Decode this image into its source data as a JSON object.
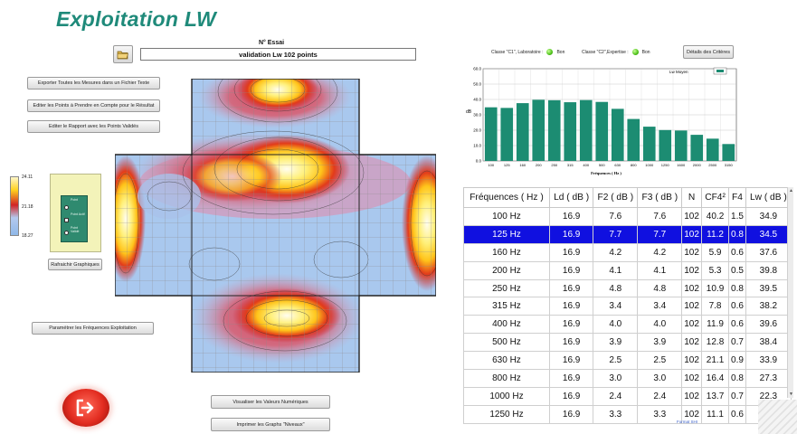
{
  "app": {
    "title": "Exploitation LW"
  },
  "essai": {
    "label": "N° Essai",
    "value": "validation Lw 102 points"
  },
  "left_buttons": {
    "export": "Exporter Toutes les Mesures dans un Fichier Texte",
    "edit_points": "Editer les Points à Prendre en Compte pour le Résultat",
    "edit_report": "Editer le Rapport avec les Points Validés",
    "refresh": "Rafraichir Graphiques",
    "params": "Paramétrer les Fréquences Exploitation"
  },
  "colorbar": {
    "max": "24.11",
    "mid": "21.18",
    "min": "18.27"
  },
  "legend_items": [
    "Point",
    "Point Actif",
    "Point Validé"
  ],
  "bottom_buttons": {
    "visualize": "Visualiser les Valeurs Numériques",
    "print": "Imprimer les Graphs \"Niveaux\""
  },
  "classes": {
    "c1_label": "Classe \"C1\", Laboratoire :",
    "c1_status": "Bon",
    "c2_label": "Classe \"C2\",Expertise :",
    "c2_status": "Bon",
    "details_button": "Détails des Critères"
  },
  "chart_data": {
    "type": "bar",
    "legend": "Lw Moyen",
    "xlabel": "Fréquences ( Hz )",
    "ylabel": "dB",
    "categories": [
      "100",
      "125",
      "160",
      "200",
      "250",
      "315",
      "400",
      "500",
      "630",
      "800",
      "1000",
      "1250",
      "1600",
      "2000",
      "2500",
      "3150"
    ],
    "values": [
      34.9,
      34.5,
      37.6,
      39.8,
      39.5,
      38.2,
      39.6,
      38.4,
      33.9,
      27.3,
      22.3,
      20.1,
      19.8,
      17.0,
      14.5,
      11.0
    ],
    "ylim": [
      0,
      60
    ],
    "yticks": [
      "0.0",
      "10.0",
      "20.0",
      "30.0",
      "40.0",
      "50.0",
      "60.0"
    ],
    "color": "#1c8c72",
    "grid": true
  },
  "table": {
    "headers": [
      "Fréquences ( Hz )",
      "Ld ( dB )",
      "F2 ( dB )",
      "F3 ( dB )",
      "N",
      "CF4²",
      "F4",
      "Lw ( dB )"
    ],
    "selected_row": 1,
    "rows": [
      [
        "100 Hz",
        "16.9",
        "7.6",
        "7.6",
        "102",
        "40.2",
        "1.5",
        "34.9"
      ],
      [
        "125 Hz",
        "16.9",
        "7.7",
        "7.7",
        "102",
        "11.2",
        "0.8",
        "34.5"
      ],
      [
        "160 Hz",
        "16.9",
        "4.2",
        "4.2",
        "102",
        "5.9",
        "0.6",
        "37.6"
      ],
      [
        "200 Hz",
        "16.9",
        "4.1",
        "4.1",
        "102",
        "5.3",
        "0.5",
        "39.8"
      ],
      [
        "250 Hz",
        "16.9",
        "4.8",
        "4.8",
        "102",
        "10.9",
        "0.8",
        "39.5"
      ],
      [
        "315 Hz",
        "16.9",
        "3.4",
        "3.4",
        "102",
        "7.8",
        "0.6",
        "38.2"
      ],
      [
        "400 Hz",
        "16.9",
        "4.0",
        "4.0",
        "102",
        "11.9",
        "0.6",
        "39.6"
      ],
      [
        "500 Hz",
        "16.9",
        "3.9",
        "3.9",
        "102",
        "12.8",
        "0.7",
        "38.4"
      ],
      [
        "630 Hz",
        "16.9",
        "2.5",
        "2.5",
        "102",
        "21.1",
        "0.9",
        "33.9"
      ],
      [
        "800 Hz",
        "16.9",
        "3.0",
        "3.0",
        "102",
        "16.4",
        "0.8",
        "27.3"
      ],
      [
        "1000 Hz",
        "16.9",
        "2.4",
        "2.4",
        "102",
        "13.7",
        "0.7",
        "22.3"
      ],
      [
        "1250 Hz",
        "16.9",
        "3.3",
        "3.3",
        "102",
        "11.1",
        "0.6",
        "20.1"
      ]
    ]
  },
  "footer": {
    "format_link": "Format SHI"
  },
  "colors": {
    "accent": "#1f8a7a",
    "selection": "#1010e0",
    "led": "#4fc21a"
  }
}
